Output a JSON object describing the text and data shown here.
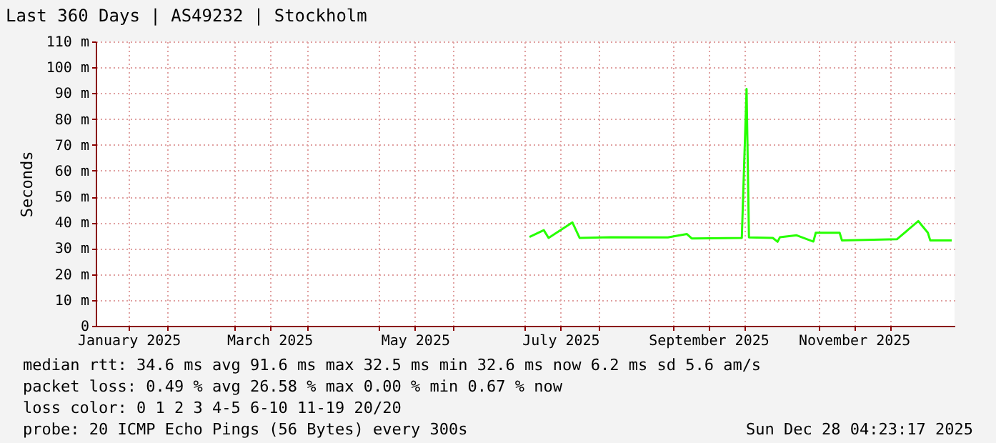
{
  "chart_data": {
    "type": "line",
    "title": "Last 360 Days | AS49232 | Stockholm",
    "ylabel": "Seconds",
    "x": [
      "2025-07-03",
      "2025-07-09",
      "2025-07-11",
      "2025-07-21",
      "2025-07-24",
      "2025-08-06",
      "2025-08-30",
      "2025-09-07",
      "2025-09-09",
      "2025-09-30",
      "2025-10-02",
      "2025-10-03",
      "2025-10-13",
      "2025-10-15",
      "2025-10-16",
      "2025-10-23",
      "2025-10-30",
      "2025-10-31",
      "2025-11-10",
      "2025-11-11",
      "2025-12-04",
      "2025-12-13",
      "2025-12-17",
      "2025-12-18",
      "2025-12-27"
    ],
    "series": [
      {
        "color": "#26ff00",
        "values": [
          34.4,
          37,
          34,
          40,
          34,
          34.3,
          34.2,
          35.5,
          33.8,
          34,
          91.6,
          34.2,
          34,
          32.5,
          34.3,
          35,
          32.6,
          36,
          36,
          33,
          33.5,
          40.5,
          36,
          33,
          33
        ]
      }
    ],
    "xlim": [
      "2025-01-02T04:23",
      "2025-12-28T04:23"
    ],
    "xticks": [
      {
        "value": "2025-01-16",
        "label": "January 2025"
      },
      {
        "value": "2025-02-01",
        "label": null
      },
      {
        "value": "2025-03-01",
        "label": null
      },
      {
        "value": "2025-03-16",
        "label": "March 2025"
      },
      {
        "value": "2025-04-01",
        "label": null
      },
      {
        "value": "2025-05-01",
        "label": null
      },
      {
        "value": "2025-05-16",
        "label": "May 2025"
      },
      {
        "value": "2025-06-01",
        "label": null
      },
      {
        "value": "2025-07-01",
        "label": null
      },
      {
        "value": "2025-07-16",
        "label": "July 2025"
      },
      {
        "value": "2025-08-01",
        "label": null
      },
      {
        "value": "2025-09-01",
        "label": null
      },
      {
        "value": "2025-09-16",
        "label": "September 2025"
      },
      {
        "value": "2025-10-01",
        "label": null
      },
      {
        "value": "2025-11-01",
        "label": null
      },
      {
        "value": "2025-11-16",
        "label": "November 2025"
      },
      {
        "value": "2025-12-01",
        "label": null
      }
    ],
    "ylim": [
      0,
      110
    ],
    "yticks": [
      0,
      {
        "value": 10,
        "label": "10 m"
      },
      {
        "value": 20,
        "label": "20 m"
      },
      {
        "value": 30,
        "label": "30 m"
      },
      {
        "value": 40,
        "label": "40 m"
      },
      {
        "value": 50,
        "label": "50 m"
      },
      {
        "value": 60,
        "label": "60 m"
      },
      {
        "value": 70,
        "label": "70 m"
      },
      {
        "value": 80,
        "label": "80 m"
      },
      {
        "value": 90,
        "label": "90 m"
      },
      {
        "value": 100,
        "label": "100 m"
      },
      {
        "value": 110,
        "label": "110 m"
      }
    ],
    "grid": true,
    "annotations": [
      "median rtt:  34.6 ms avg  91.6 ms max  32.5 ms min  32.6 ms now  6.2 ms sd  5.6   am/s",
      "packet loss: 0.49 % avg  26.58 % max  0.00 % min  0.67 % now",
      "loss color:  0  1  2  3  4-5  6-10  11-19  20/20",
      "probe:       20 ICMP Echo Pings (56 Bytes) every 300s",
      "Sun Dec 28 04:23:17 2025"
    ]
  }
}
